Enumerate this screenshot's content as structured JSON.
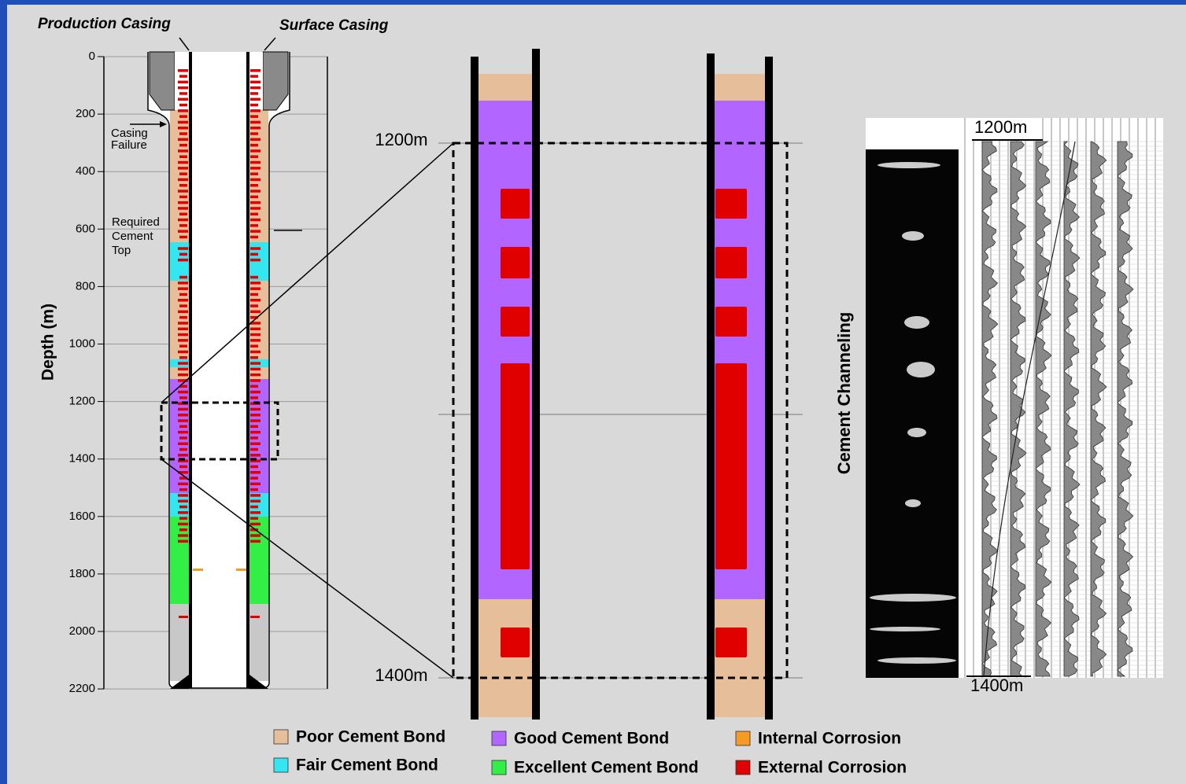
{
  "labels": {
    "production_casing": "Production Casing",
    "surface_casing": "Surface Casing",
    "depth_axis": "Depth (m)",
    "casing_failure": [
      "Casing",
      "Failure"
    ],
    "required_cement_top": [
      "Required",
      "Cement",
      "Top"
    ],
    "zoom_top": "1200m",
    "zoom_bottom": "1400m",
    "cement_channeling": "Cement Channeling",
    "log_top": "1200m",
    "log_bottom": "1400m"
  },
  "depth_ticks": [
    "0",
    "200",
    "400",
    "600",
    "800",
    "1000",
    "1200",
    "1400",
    "1600",
    "1800",
    "2000",
    "2200"
  ],
  "legend": [
    {
      "label": "Poor Cement Bond",
      "color": "#e6bf9a"
    },
    {
      "label": "Fair Cement Bond",
      "color": "#33e6f0"
    },
    {
      "label": "Good Cement Bond",
      "color": "#b266ff"
    },
    {
      "label": "Excellent Cement Bond",
      "color": "#33ee44"
    },
    {
      "label": "Internal Corrosion",
      "color": "#f59a23"
    },
    {
      "label": "External Corrosion",
      "color": "#e00000"
    }
  ]
}
